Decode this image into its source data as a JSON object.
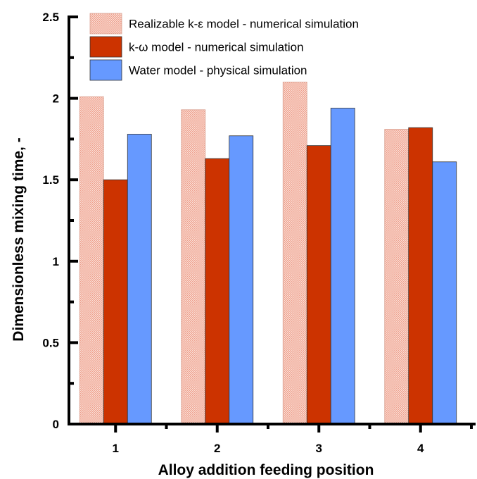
{
  "chart_data": {
    "type": "bar",
    "xlabel": "Alloy addition feeding position",
    "ylabel": "Dimensionless mixing time, -",
    "categories": [
      "1",
      "2",
      "3",
      "4"
    ],
    "ylim": [
      0,
      2.5
    ],
    "yticks": [
      "0",
      "0.5",
      "1",
      "1.5",
      "2",
      "2.5"
    ],
    "ytick_values": [
      0,
      0.5,
      1,
      1.5,
      2,
      2.5
    ],
    "legend_position": "top-left",
    "grid": false,
    "series": [
      {
        "name": "Realizable k-ε  model - numerical simulation",
        "values": [
          2.01,
          1.93,
          2.1,
          1.81
        ],
        "color": "#f4b8a8",
        "pattern": "hatched"
      },
      {
        "name": "k-ω model - numerical simulation",
        "values": [
          1.5,
          1.63,
          1.71,
          1.82
        ],
        "color": "#cc3300"
      },
      {
        "name": "Water model - physical simulation",
        "values": [
          1.78,
          1.77,
          1.94,
          1.61
        ],
        "color": "#6699ff"
      }
    ]
  }
}
